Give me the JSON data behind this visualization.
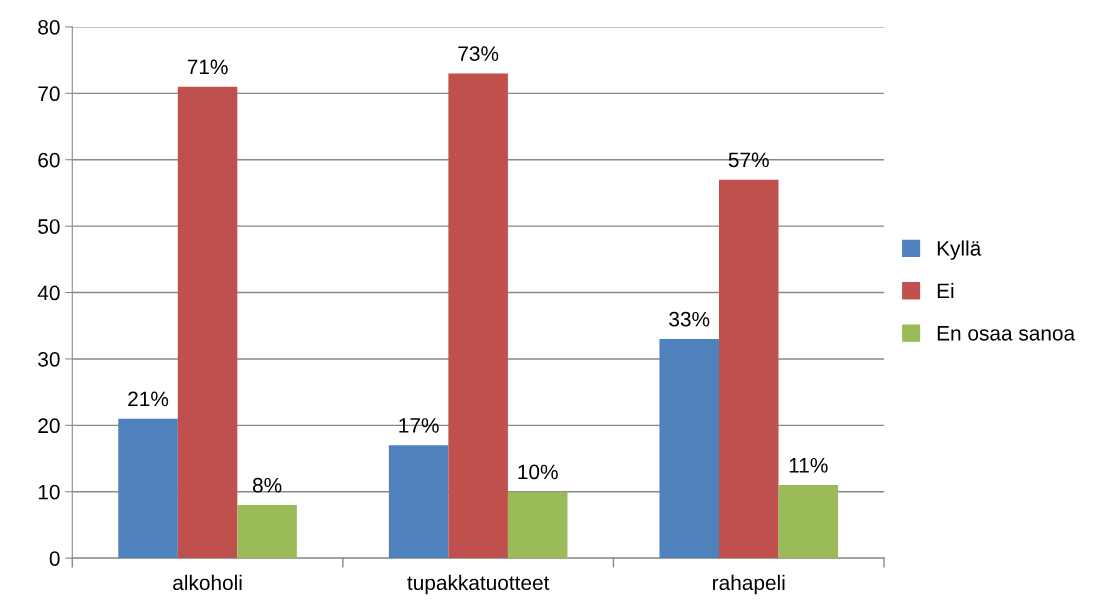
{
  "chart_data": {
    "type": "bar",
    "categories": [
      "alkoholi",
      "tupakkatuotteet",
      "rahapeli"
    ],
    "series": [
      {
        "name": "Kyllä",
        "color": "#4f81bd",
        "values": [
          21,
          17,
          33
        ],
        "value_labels": [
          "21%",
          "17%",
          "33%"
        ]
      },
      {
        "name": "Ei",
        "color": "#c0504d",
        "values": [
          71,
          73,
          57
        ],
        "value_labels": [
          "71%",
          "73%",
          "57%"
        ]
      },
      {
        "name": "En osaa sanoa",
        "color": "#9bbb59",
        "values": [
          8,
          10,
          11
        ],
        "value_labels": [
          "8%",
          "10%",
          "11%"
        ]
      }
    ],
    "ylim": [
      0,
      80
    ],
    "yticks": [
      0,
      10,
      20,
      30,
      40,
      50,
      60,
      70,
      80
    ],
    "grid": "y",
    "legend": "right"
  }
}
